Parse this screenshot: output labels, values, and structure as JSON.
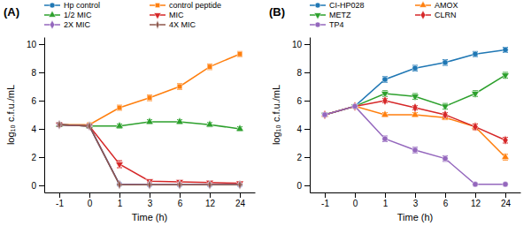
{
  "chart_data": [
    {
      "type": "line",
      "title": "(A)",
      "x_label": "Time (h)",
      "y_label": "log₁₀ c.f.u./mL",
      "categories": [
        "-1",
        "0",
        "1",
        "3",
        "6",
        "12",
        "24"
      ],
      "ylim": [
        -0.5,
        10.5
      ],
      "yticks": [
        0,
        2,
        4,
        6,
        8,
        10
      ],
      "grid": false,
      "legend": "upper left",
      "series": [
        {
          "name": "Hp control",
          "marker": "circle",
          "values": [
            4.3,
            4.2,
            0.08,
            0.05,
            0.05,
            0.05,
            0.05
          ],
          "errors": [
            0.12,
            0.12,
            0.05,
            0.03,
            0.03,
            0.03,
            0.03
          ]
        },
        {
          "name": "control peptide",
          "marker": "square",
          "values": [
            4.3,
            4.3,
            5.5,
            6.2,
            7.0,
            8.4,
            9.3
          ],
          "errors": [
            0.12,
            0.12,
            0.18,
            0.2,
            0.2,
            0.2,
            0.18
          ]
        },
        {
          "name": "1/2 MIC",
          "marker": "triangle-up",
          "values": [
            4.3,
            4.2,
            4.2,
            4.5,
            4.5,
            4.3,
            4.0
          ],
          "errors": [
            0.12,
            0.12,
            0.15,
            0.15,
            0.15,
            0.15,
            0.15
          ]
        },
        {
          "name": "MIC",
          "marker": "triangle-down",
          "values": [
            4.3,
            4.2,
            1.5,
            0.3,
            0.25,
            0.2,
            0.15
          ],
          "errors": [
            0.12,
            0.12,
            0.25,
            0.1,
            0.1,
            0.08,
            0.08
          ]
        },
        {
          "name": "2X MIC",
          "marker": "diamond",
          "values": [
            4.3,
            4.2,
            0.08,
            0.05,
            0.05,
            0.05,
            0.05
          ],
          "errors": [
            0.12,
            0.12,
            0.04,
            0.03,
            0.03,
            0.03,
            0.03
          ]
        },
        {
          "name": "4X MIC",
          "marker": "thin-diamond",
          "values": [
            4.3,
            4.2,
            0.05,
            0.05,
            0.05,
            0.05,
            0.05
          ],
          "errors": [
            0.12,
            0.12,
            0.03,
            0.03,
            0.03,
            0.03,
            0.03
          ]
        }
      ]
    },
    {
      "type": "line",
      "title": "(B)",
      "x_label": "Time (h)",
      "y_label": "log₁₀ c.f.u./mL",
      "categories": [
        "-1",
        "0",
        "1",
        "3",
        "6",
        "12",
        "24"
      ],
      "ylim": [
        -0.5,
        10.5
      ],
      "yticks": [
        0,
        2,
        4,
        6,
        8,
        10
      ],
      "grid": false,
      "legend": "upper left",
      "series": [
        {
          "name": "CI-HP028",
          "marker": "circle",
          "values": [
            5.0,
            5.6,
            7.5,
            8.3,
            8.7,
            9.3,
            9.6
          ],
          "errors": [
            0.1,
            0.1,
            0.2,
            0.2,
            0.2,
            0.18,
            0.18
          ]
        },
        {
          "name": "AMOX",
          "marker": "triangle-up",
          "values": [
            5.0,
            5.6,
            5.0,
            5.0,
            4.8,
            4.15,
            2.0
          ],
          "errors": [
            0.1,
            0.1,
            0.15,
            0.15,
            0.15,
            0.2,
            0.2
          ]
        },
        {
          "name": "METZ",
          "marker": "triangle-down",
          "values": [
            5.0,
            5.6,
            6.5,
            6.3,
            5.6,
            6.5,
            7.8
          ],
          "errors": [
            0.1,
            0.1,
            0.2,
            0.2,
            0.2,
            0.2,
            0.2
          ]
        },
        {
          "name": "CLRN",
          "marker": "diamond",
          "values": [
            5.0,
            5.6,
            6.0,
            5.5,
            5.0,
            4.15,
            3.2
          ],
          "errors": [
            0.1,
            0.1,
            0.15,
            0.15,
            0.15,
            0.2,
            0.2
          ]
        },
        {
          "name": "TP4",
          "marker": "circle",
          "values": [
            5.0,
            5.6,
            3.3,
            2.5,
            1.9,
            0.08,
            0.08
          ],
          "errors": [
            0.1,
            0.1,
            0.2,
            0.2,
            0.2,
            0.04,
            0.04
          ]
        }
      ]
    }
  ]
}
